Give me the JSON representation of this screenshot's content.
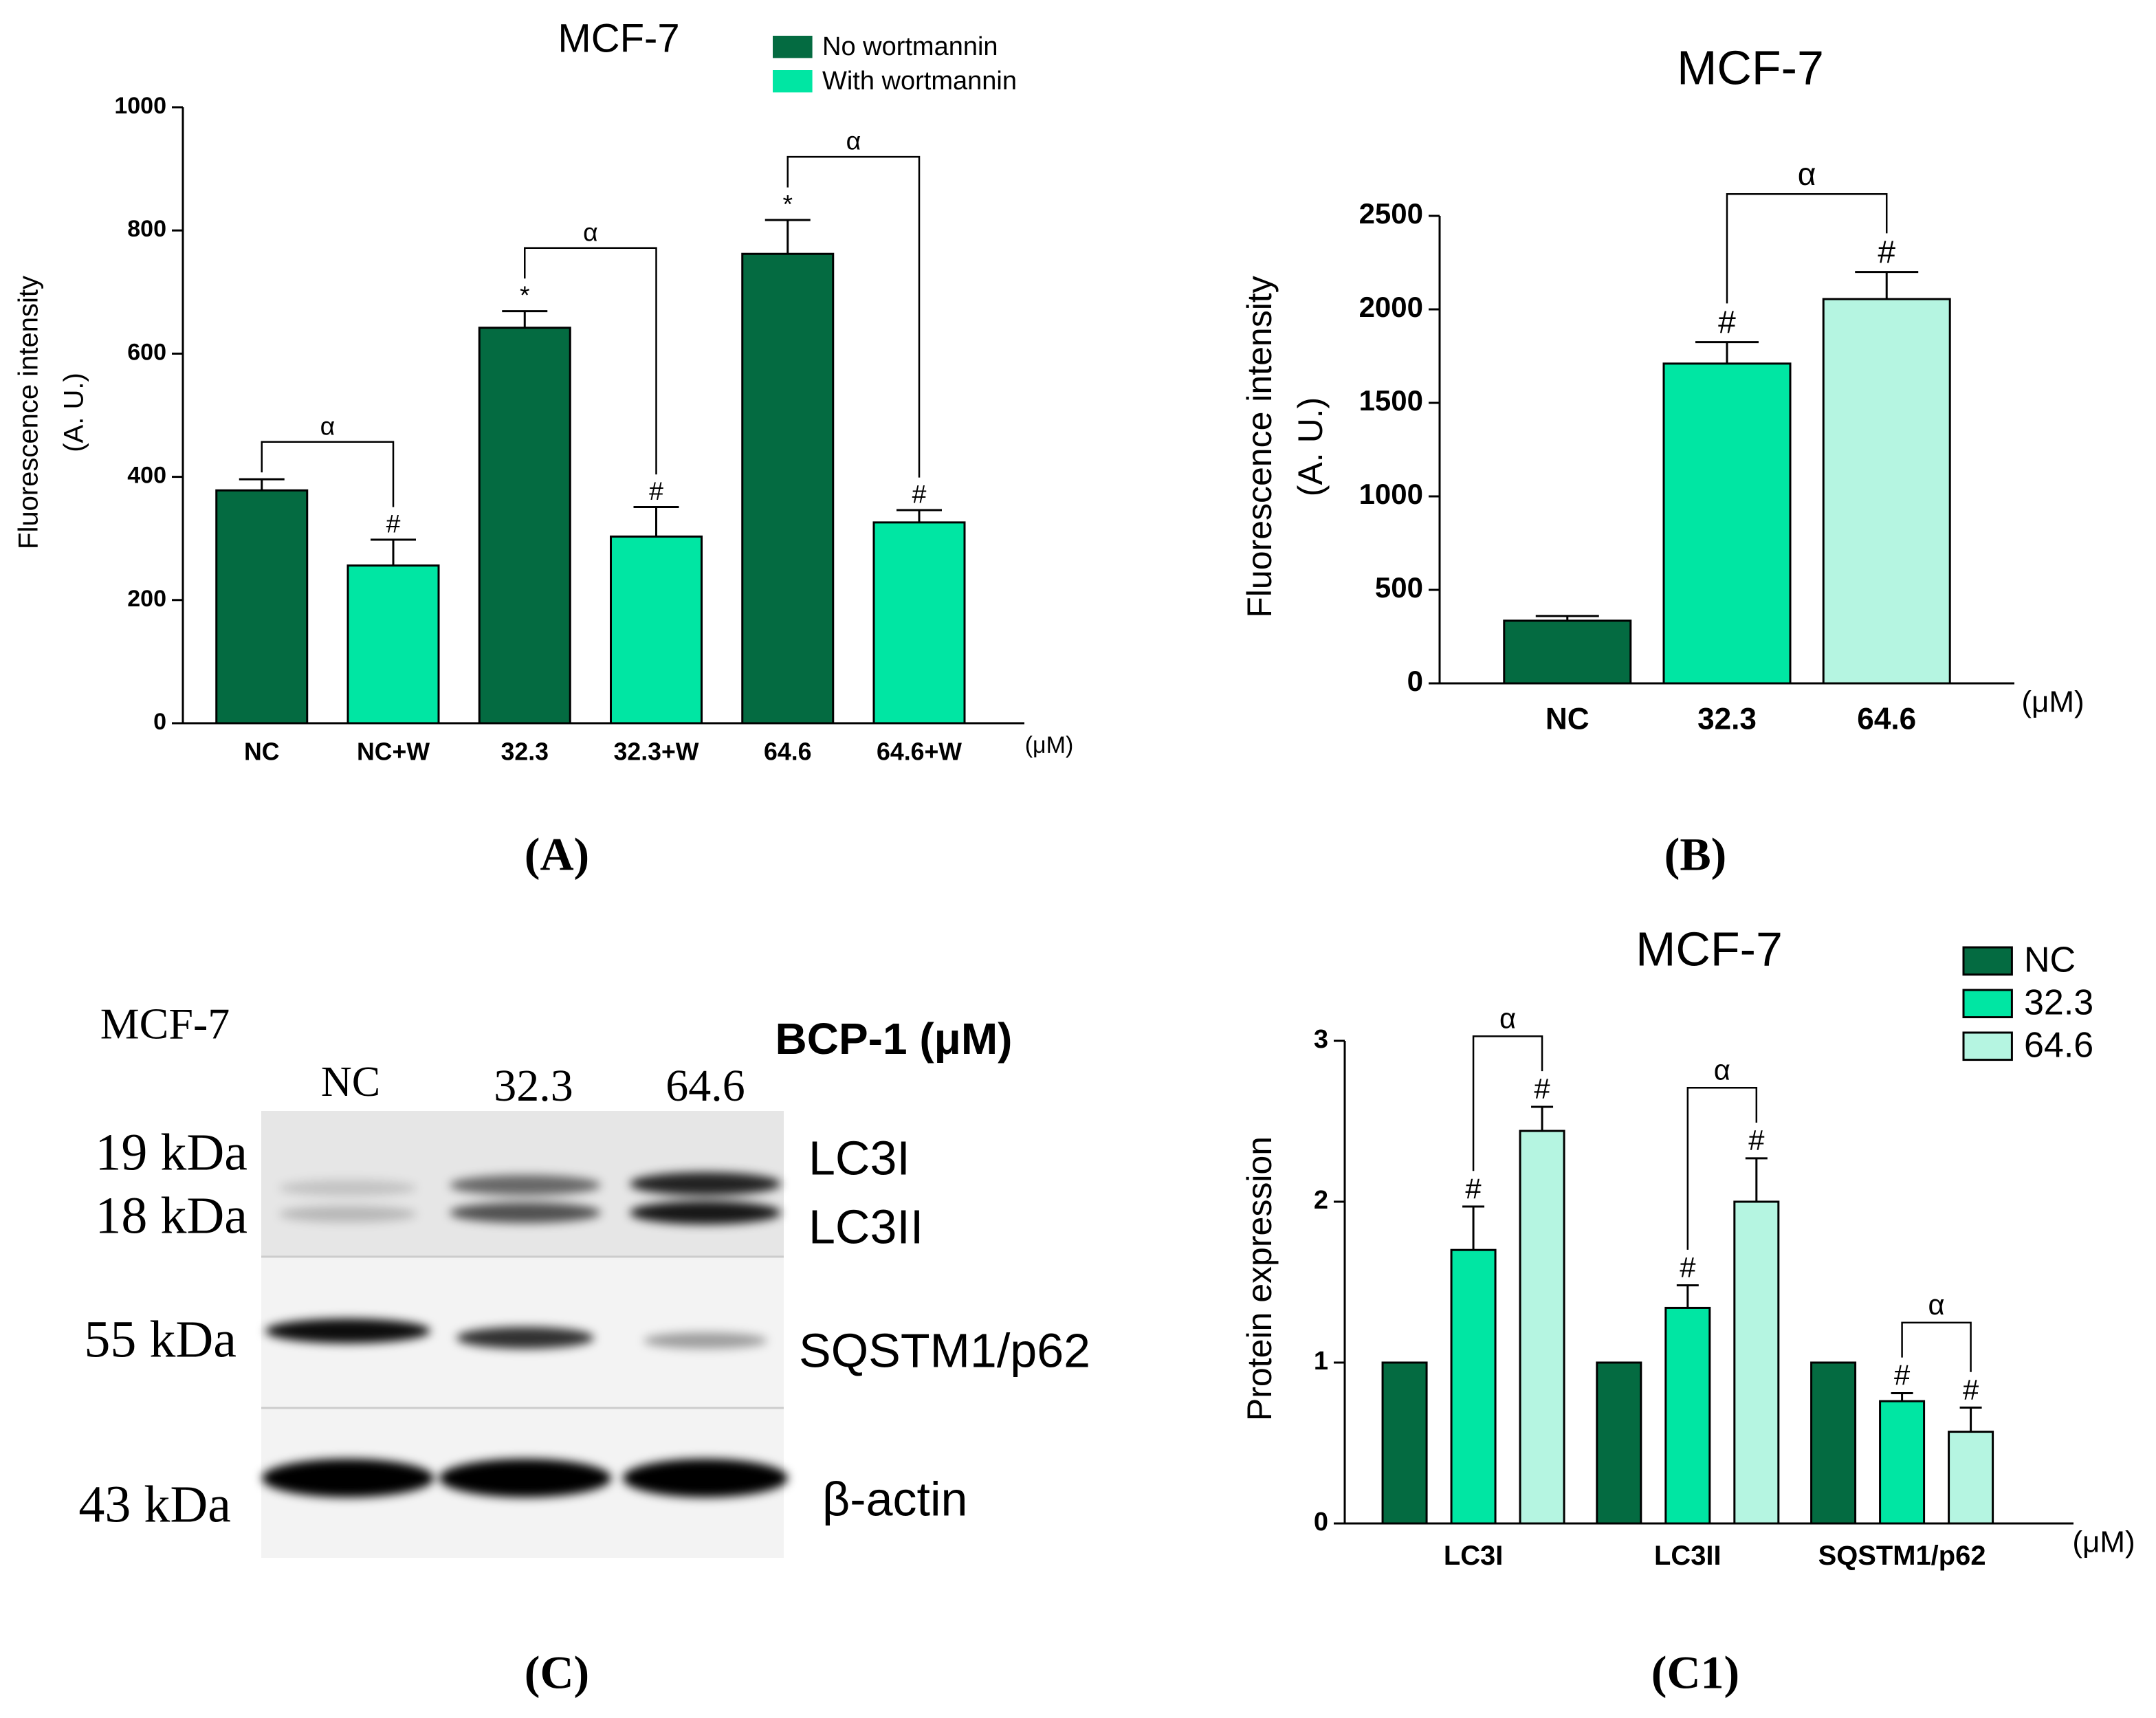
{
  "chart_data": [
    {
      "type": "bar",
      "title": "MCF-7",
      "caption": "(A)",
      "ylabel": [
        "Fluorescence intensity",
        "(A. U.)"
      ],
      "x_unit": "(μM)",
      "categories": [
        "NC",
        "NC+W",
        "32.3",
        "32.3+W",
        "64.6",
        "64.6+W"
      ],
      "series": [
        {
          "name": "No wortmannin",
          "color": "#046b41",
          "values": [
            378,
            null,
            642,
            null,
            762,
            null
          ],
          "errors": [
            18,
            null,
            27,
            null,
            55,
            null
          ],
          "markers": [
            null,
            null,
            "*",
            null,
            "*",
            null
          ]
        },
        {
          "name": "With wortmannin",
          "color": "#00e6a3",
          "values": [
            null,
            256,
            null,
            303,
            null,
            326
          ],
          "errors": [
            null,
            42,
            null,
            48,
            null,
            20
          ],
          "markers": [
            null,
            "#",
            null,
            "#",
            null,
            "#"
          ]
        }
      ],
      "brackets": [
        {
          "from": [
            0,
            0
          ],
          "to": [
            1,
            1
          ],
          "label": "α"
        },
        {
          "from": [
            0,
            2
          ],
          "to": [
            1,
            3
          ],
          "label": "α"
        },
        {
          "from": [
            0,
            4
          ],
          "to": [
            1,
            5
          ],
          "label": "α"
        }
      ],
      "ylim": [
        0,
        1000
      ],
      "yticks": [
        0,
        200,
        400,
        600,
        800,
        1000
      ],
      "legend": "top"
    },
    {
      "type": "bar",
      "title": "MCF-7",
      "caption": "(B)",
      "ylabel": [
        "Fluorescence intensity",
        "(A. U.)"
      ],
      "x_unit": "(μM)",
      "categories": [
        "NC",
        "32.3",
        "64.6"
      ],
      "values": [
        335,
        1710,
        2055
      ],
      "errors": [
        25,
        115,
        145
      ],
      "colors": [
        "#046b41",
        "#00e6a3",
        "#b5f5e1"
      ],
      "markers": [
        null,
        "#",
        "#"
      ],
      "brackets": [
        {
          "from": 1,
          "to": 2,
          "label": "α"
        }
      ],
      "ylim": [
        0,
        2500
      ],
      "yticks": [
        0,
        500,
        1000,
        1500,
        2000,
        2500
      ]
    },
    {
      "type": "bar",
      "grouped": true,
      "title": "MCF-7",
      "caption": "(C1)",
      "ylabel": [
        "Protein expression"
      ],
      "x_unit": "(μM)",
      "categories": [
        "LC3I",
        "LC3II",
        "SQSTM1/p62"
      ],
      "series": [
        {
          "name": "NC",
          "color": "#046b41",
          "values": [
            1,
            1,
            1
          ],
          "errors": [
            null,
            null,
            null
          ],
          "markers": [
            null,
            null,
            null
          ]
        },
        {
          "name": "32.3",
          "color": "#00e6a3",
          "values": [
            1.7,
            1.34,
            0.76
          ],
          "errors": [
            0.27,
            0.14,
            0.05
          ],
          "markers": [
            "#",
            "#",
            "#"
          ]
        },
        {
          "name": "64.6",
          "color": "#b5f5e1",
          "values": [
            2.44,
            2.0,
            0.57
          ],
          "errors": [
            0.15,
            0.27,
            0.15
          ],
          "markers": [
            "#",
            "#",
            "#"
          ]
        }
      ],
      "brackets": [
        {
          "from": [
            1,
            0
          ],
          "to": [
            2,
            0
          ],
          "label": "α"
        },
        {
          "from": [
            1,
            1
          ],
          "to": [
            2,
            1
          ],
          "label": "α"
        },
        {
          "from": [
            1,
            2
          ],
          "to": [
            2,
            2
          ],
          "label": "α"
        }
      ],
      "ylim": [
        0,
        3
      ],
      "yticks": [
        0,
        1,
        2,
        3
      ],
      "legend": "top-right"
    }
  ],
  "blot": {
    "caption": "(C)",
    "cell_line": "MCF-7",
    "treatment": "BCP-1 (μM)",
    "lanes": [
      "NC",
      "32.3",
      "64.6"
    ],
    "markers": [
      "19 kDa",
      "18 kDa",
      "55 kDa",
      "43 kDa"
    ],
    "proteins": [
      "LC3I",
      "LC3II",
      "SQSTM1/p62",
      "β-actin"
    ]
  }
}
